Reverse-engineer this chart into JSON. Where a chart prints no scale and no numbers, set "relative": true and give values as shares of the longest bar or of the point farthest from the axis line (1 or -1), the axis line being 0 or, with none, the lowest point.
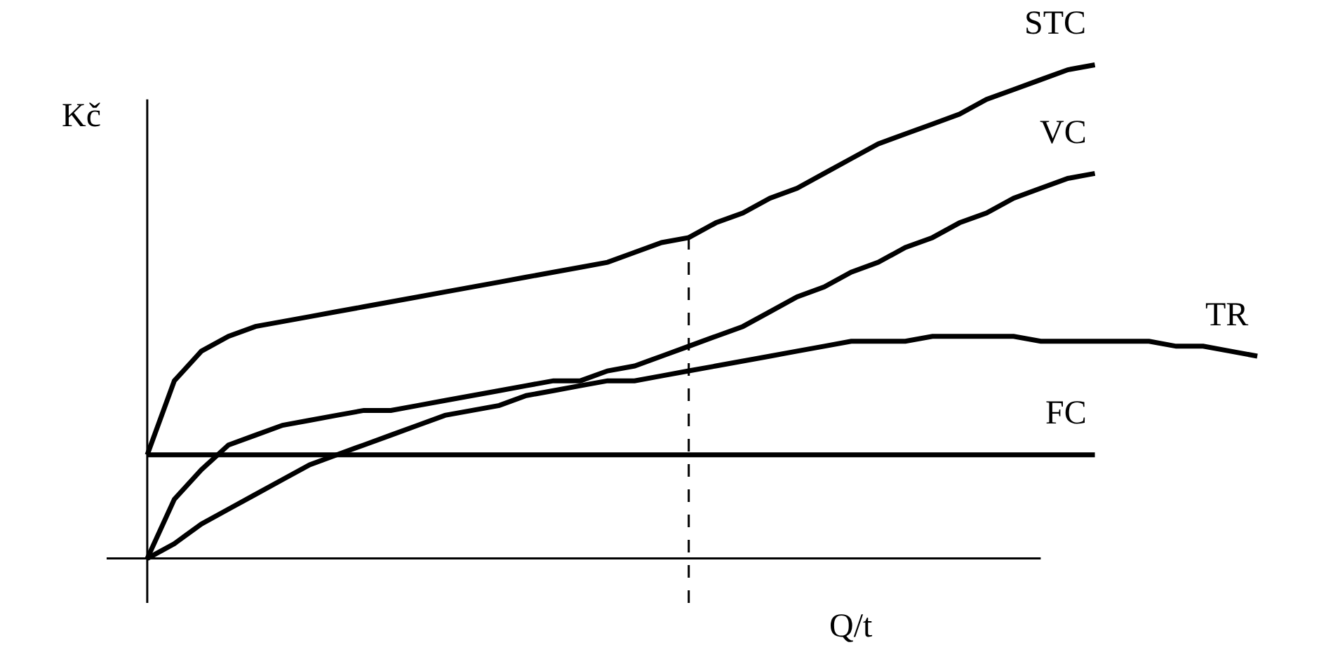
{
  "chart_data": {
    "type": "line",
    "relative": true,
    "ylabel": "Kč",
    "xlabel": "Q/t",
    "legend": false,
    "marker": "none",
    "line_style": "solid",
    "categories": [
      null,
      null,
      null,
      null,
      null,
      null,
      null,
      null,
      null,
      null,
      null,
      null,
      null,
      null,
      null,
      null,
      null,
      null,
      null,
      null,
      null,
      null,
      null,
      null,
      null,
      null,
      null,
      null,
      null,
      null,
      null,
      null,
      null,
      null,
      null,
      null,
      null,
      null,
      null,
      null,
      null,
      null
    ],
    "series": [
      {
        "name": "STC",
        "color": "#000000",
        "values": [
          0.21,
          0.36,
          0.42,
          0.45,
          0.47,
          0.48,
          0.49,
          0.5,
          0.51,
          0.52,
          0.53,
          0.54,
          0.55,
          0.56,
          0.57,
          0.58,
          0.59,
          0.6,
          0.62,
          0.64,
          0.65,
          0.68,
          0.7,
          0.73,
          0.75,
          0.78,
          0.81,
          0.84,
          0.86,
          0.88,
          0.9,
          0.93,
          0.95,
          0.97,
          0.99,
          1.0,
          null,
          null,
          null,
          null,
          null,
          null
        ]
      },
      {
        "name": "VC",
        "color": "#000000",
        "values": [
          0,
          0.12,
          0.18,
          0.23,
          0.25,
          0.27,
          0.28,
          0.29,
          0.3,
          0.3,
          0.31,
          0.32,
          0.33,
          0.34,
          0.35,
          0.36,
          0.36,
          0.38,
          0.39,
          0.41,
          0.43,
          0.45,
          0.47,
          0.5,
          0.53,
          0.55,
          0.58,
          0.6,
          0.63,
          0.65,
          0.68,
          0.7,
          0.73,
          0.75,
          0.77,
          0.78,
          null,
          null,
          null,
          null,
          null,
          null
        ]
      },
      {
        "name": "TR",
        "color": "#000000",
        "values": [
          0,
          0.03,
          0.07,
          0.1,
          0.13,
          0.16,
          0.19,
          0.21,
          0.23,
          0.25,
          0.27,
          0.29,
          0.3,
          0.31,
          0.33,
          0.34,
          0.35,
          0.36,
          0.36,
          0.37,
          0.38,
          0.39,
          0.4,
          0.41,
          0.42,
          0.43,
          0.44,
          0.44,
          0.44,
          0.45,
          0.45,
          0.45,
          0.45,
          0.44,
          0.44,
          0.44,
          0.44,
          0.44,
          0.43,
          0.43,
          0.42,
          0.41
        ]
      },
      {
        "name": "FC",
        "color": "#000000",
        "values": [
          0.21,
          0.21,
          0.21,
          0.21,
          0.21,
          0.21,
          0.21,
          0.21,
          0.21,
          0.21,
          0.21,
          0.21,
          0.21,
          0.21,
          0.21,
          0.21,
          0.21,
          0.21,
          0.21,
          0.21,
          0.21,
          0.21,
          0.21,
          0.21,
          0.21,
          0.21,
          0.21,
          0.21,
          0.21,
          0.21,
          0.21,
          0.21,
          0.21,
          0.21,
          0.21,
          0.21,
          null,
          null,
          null,
          null,
          null,
          null
        ]
      }
    ]
  }
}
